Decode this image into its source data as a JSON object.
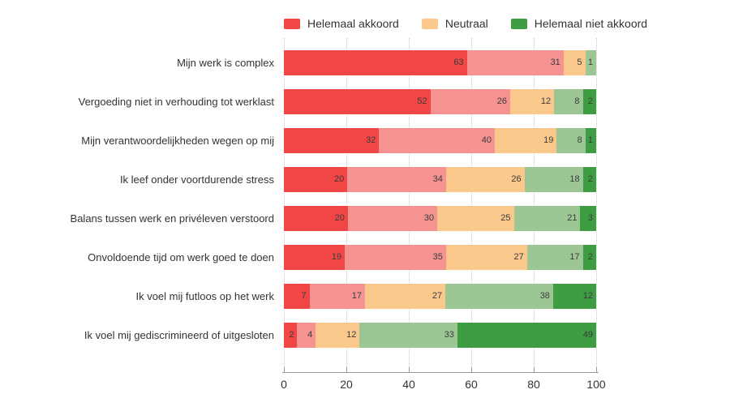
{
  "legend": [
    {
      "label": "Helemaal akkoord",
      "color": "#f04646"
    },
    {
      "label": "Neutraal",
      "color": "#fbc88c"
    },
    {
      "label": "Helemaal niet akkoord",
      "color": "#3e9d43"
    }
  ],
  "chart_data": {
    "type": "bar",
    "orientation": "horizontal",
    "stacked": true,
    "title": "",
    "xlabel": "",
    "ylabel": "",
    "xlim": [
      0,
      100
    ],
    "x_ticks": [
      "0",
      "20",
      "40",
      "60",
      "80",
      "100"
    ],
    "grid": "vertical-dotted",
    "legend_position": "top",
    "categories": [
      "Mijn werk is complex",
      "Vergoeding niet in verhouding tot werklast",
      "Mijn verantwoordelijkheden wegen op mij",
      "Ik leef onder voortdurende stress",
      "Balans tussen werk en privéleven verstoord",
      "Onvoldoende tijd om werk goed te doen",
      "Ik voel mij futloos op het werk",
      "Ik voel mij gediscrimineerd of uitgesloten"
    ],
    "series": [
      {
        "name": "Helemaal akkoord",
        "color": "#f04646",
        "values": [
          63,
          52,
          32,
          20,
          20,
          19,
          7,
          2
        ]
      },
      {
        "name": "",
        "color": "#f59393",
        "values": [
          31,
          26,
          40,
          34,
          30,
          35,
          17,
          4
        ]
      },
      {
        "name": "Neutraal",
        "color": "#fbc88c",
        "values": [
          5,
          12,
          19,
          26,
          25,
          27,
          27,
          12
        ]
      },
      {
        "name": "",
        "color": "#9cc795",
        "values": [
          1,
          8,
          8,
          18,
          21,
          17,
          38,
          33
        ]
      },
      {
        "name": "Helemaal niet akkoord",
        "color": "#3e9d43",
        "values": [
          0,
          2,
          1,
          2,
          3,
          2,
          12,
          49
        ]
      }
    ]
  }
}
